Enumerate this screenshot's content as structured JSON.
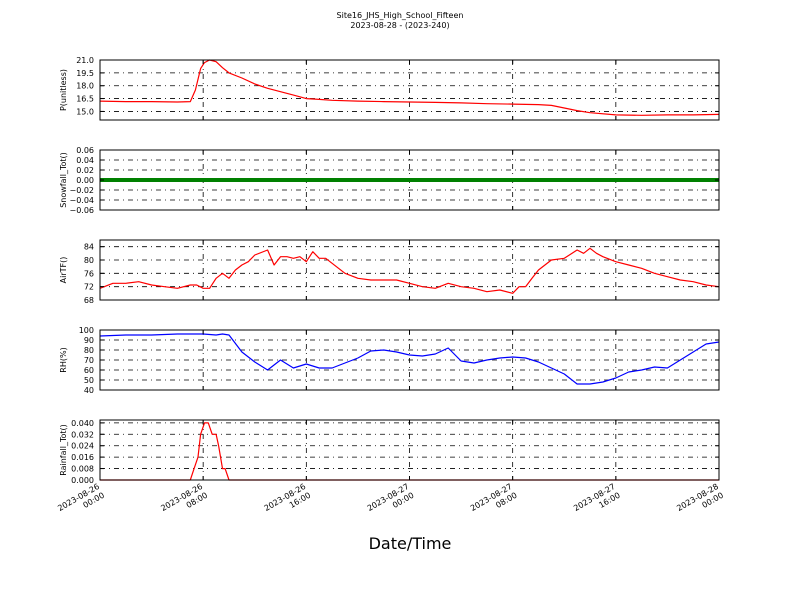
{
  "chart_data": {
    "title": "Site16_JHS_High_School_Fifteen",
    "subtitle": "2023-08-28 - (2023-240)",
    "xlabel": "Date/Time",
    "type": "line",
    "grid": true,
    "x_ticks": [
      [
        "2023-08-26",
        "00:00"
      ],
      [
        "2023-08-26",
        "08:00"
      ],
      [
        "2023-08-26",
        "16:00"
      ],
      [
        "2023-08-27",
        "00:00"
      ],
      [
        "2023-08-27",
        "08:00"
      ],
      [
        "2023-08-27",
        "16:00"
      ],
      [
        "2023-08-28",
        "00:00"
      ]
    ],
    "x_range_hours": [
      0,
      48
    ],
    "panels": [
      {
        "ylabel": "P(unitless)",
        "ylim": [
          14.0,
          21.0
        ],
        "yticks": [
          "15.0",
          "16.5",
          "18.0",
          "19.5",
          "21.0"
        ],
        "ytick_values": [
          15.0,
          16.5,
          18.0,
          19.5,
          21.0
        ],
        "color": "#ff0000",
        "x": [
          0,
          2,
          4,
          6,
          7,
          7.4,
          7.8,
          8.1,
          8.5,
          9,
          9.5,
          10,
          11,
          12,
          13,
          14,
          15,
          16,
          17,
          18,
          20,
          22,
          24,
          26,
          28,
          30,
          32,
          34,
          35,
          36,
          37,
          38,
          40,
          42,
          44,
          46,
          48
        ],
        "values": [
          16.2,
          16.15,
          16.15,
          16.1,
          16.15,
          17.5,
          20.0,
          20.7,
          21.0,
          20.8,
          20.1,
          19.5,
          18.9,
          18.2,
          17.7,
          17.3,
          16.9,
          16.5,
          16.4,
          16.3,
          16.2,
          16.15,
          16.1,
          16.05,
          16.0,
          15.9,
          15.85,
          15.8,
          15.7,
          15.4,
          15.1,
          14.85,
          14.6,
          14.55,
          14.6,
          14.6,
          14.65
        ]
      },
      {
        "ylabel": "Snowfall_Tot()",
        "ylim": [
          -0.06,
          0.06
        ],
        "yticks": [
          "−0.06",
          "−0.04",
          "−0.02",
          "0.00",
          "0.02",
          "0.04",
          "0.06"
        ],
        "ytick_values": [
          -0.06,
          -0.04,
          -0.02,
          0.0,
          0.02,
          0.04,
          0.06
        ],
        "color": "#008000",
        "x": [
          0,
          48
        ],
        "values": [
          0.0,
          0.0
        ]
      },
      {
        "ylabel": "AirTF()",
        "ylim": [
          68,
          86
        ],
        "yticks": [
          "68",
          "72",
          "76",
          "80",
          "84"
        ],
        "ytick_values": [
          68,
          72,
          76,
          80,
          84
        ],
        "color": "#ff0000",
        "x": [
          0,
          1,
          2,
          3,
          4,
          5,
          6,
          7,
          7.5,
          8,
          8.5,
          9,
          9.5,
          10,
          10.5,
          11,
          11.5,
          12,
          13,
          13.5,
          14,
          14.5,
          15,
          15.5,
          16,
          16.5,
          17,
          17.5,
          18,
          19,
          20,
          21,
          22,
          23,
          24,
          25,
          26,
          27,
          28,
          29,
          30,
          31,
          32,
          32.5,
          33,
          33.5,
          34,
          35,
          36,
          37,
          37.5,
          38,
          38.5,
          39,
          40,
          41,
          42,
          43,
          44,
          45,
          46,
          47,
          48
        ],
        "values": [
          71.5,
          73,
          73,
          73.5,
          72.5,
          72,
          71.5,
          72.5,
          72.5,
          71.5,
          71.5,
          74.5,
          76,
          74.5,
          77,
          78.5,
          79.5,
          81.5,
          83,
          78.5,
          81,
          81,
          80.5,
          81,
          79.5,
          82.5,
          80.5,
          80.5,
          79,
          76,
          74.5,
          74,
          74,
          74,
          73,
          72,
          71.5,
          73,
          72,
          71.5,
          70.5,
          71,
          70,
          72,
          72,
          74.5,
          77,
          80,
          80.5,
          83,
          82,
          83.5,
          82,
          81,
          79.5,
          78.5,
          77.5,
          76,
          75,
          74,
          73.5,
          72.5,
          72
        ]
      },
      {
        "ylabel": "RH(%)",
        "ylim": [
          40,
          100
        ],
        "yticks": [
          "40",
          "50",
          "60",
          "70",
          "80",
          "90",
          "100"
        ],
        "ytick_values": [
          40,
          50,
          60,
          70,
          80,
          90,
          100
        ],
        "color": "#0000ff",
        "x": [
          0,
          2,
          4,
          6,
          8,
          9,
          9.5,
          10,
          11,
          12,
          13,
          14,
          15,
          16,
          17,
          18,
          19,
          20,
          21,
          22,
          23,
          24,
          25,
          26,
          27,
          28,
          29,
          30,
          31,
          32,
          33,
          34,
          35,
          36,
          37,
          38,
          39,
          40,
          41,
          42,
          43,
          44,
          45,
          46,
          47,
          48
        ],
        "values": [
          94,
          95,
          95,
          96,
          96,
          95,
          96,
          95,
          78,
          68,
          60,
          70,
          62,
          66,
          62,
          62,
          67,
          72,
          79,
          80,
          78,
          75,
          74,
          76,
          82,
          69,
          67,
          70,
          72,
          73,
          72,
          68,
          62,
          56,
          46,
          46,
          48,
          52,
          58,
          60,
          63,
          62,
          70,
          78,
          86,
          88
        ]
      },
      {
        "ylabel": "Rainfall_Tot()",
        "ylim": [
          0.0,
          0.042
        ],
        "yticks": [
          "0.000",
          "0.008",
          "0.016",
          "0.024",
          "0.032",
          "0.040"
        ],
        "ytick_values": [
          0.0,
          0.008,
          0.016,
          0.024,
          0.032,
          0.04
        ],
        "color": "#ff0000",
        "x": [
          0,
          7.0,
          7.3,
          7.6,
          7.8,
          8.1,
          8.4,
          8.7,
          9.0,
          9.2,
          9.5,
          9.7,
          10.0,
          48
        ],
        "values": [
          0,
          0,
          0.008,
          0.016,
          0.032,
          0.04,
          0.04,
          0.032,
          0.032,
          0.024,
          0.008,
          0.008,
          0,
          0
        ]
      }
    ]
  }
}
